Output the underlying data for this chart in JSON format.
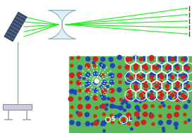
{
  "fig_width": 2.72,
  "fig_height": 1.89,
  "dpi": 100,
  "bg_color": "#ffffff",
  "panel_bg": "#5cb85c",
  "particle_red": "#cc2222",
  "particle_blue": "#2244bb",
  "particle_white": "#ffffff",
  "beam_color": "#22ee22",
  "beam_color2": "#00cc00",
  "grating_face": "#4a5568",
  "grating_stripe": "#a0aec0",
  "lens_face": "#ddeeff",
  "lens_edge": "#aabbcc",
  "stage_face": "#ccccdd",
  "stage_edge": "#999999",
  "label_S": "S",
  "label_L": "L",
  "label_fontsize": 5.5,
  "label_color": "#ffffff"
}
